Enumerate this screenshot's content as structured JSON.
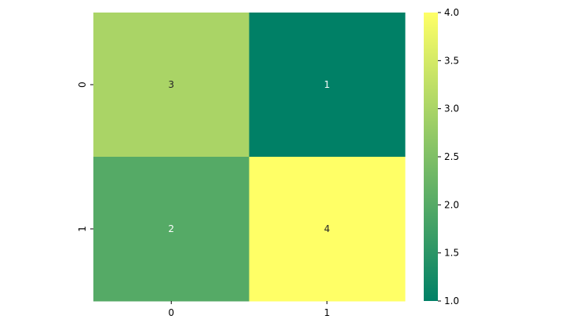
{
  "chart_data": {
    "type": "heatmap",
    "title": "",
    "xlabel": "",
    "ylabel": "",
    "x_categories": [
      "0",
      "1"
    ],
    "y_categories": [
      "0",
      "1"
    ],
    "values": [
      [
        3,
        1
      ],
      [
        2,
        4
      ]
    ],
    "annotations": [
      "3",
      "1",
      "2",
      "4"
    ],
    "colormap": "summer",
    "color_range": [
      1.0,
      4.0
    ],
    "colorbar_ticks": [
      "1.0",
      "1.5",
      "2.0",
      "2.5",
      "3.0",
      "3.5",
      "4.0"
    ],
    "colors": {
      "min": "#008066",
      "max": "#ffff66"
    }
  }
}
